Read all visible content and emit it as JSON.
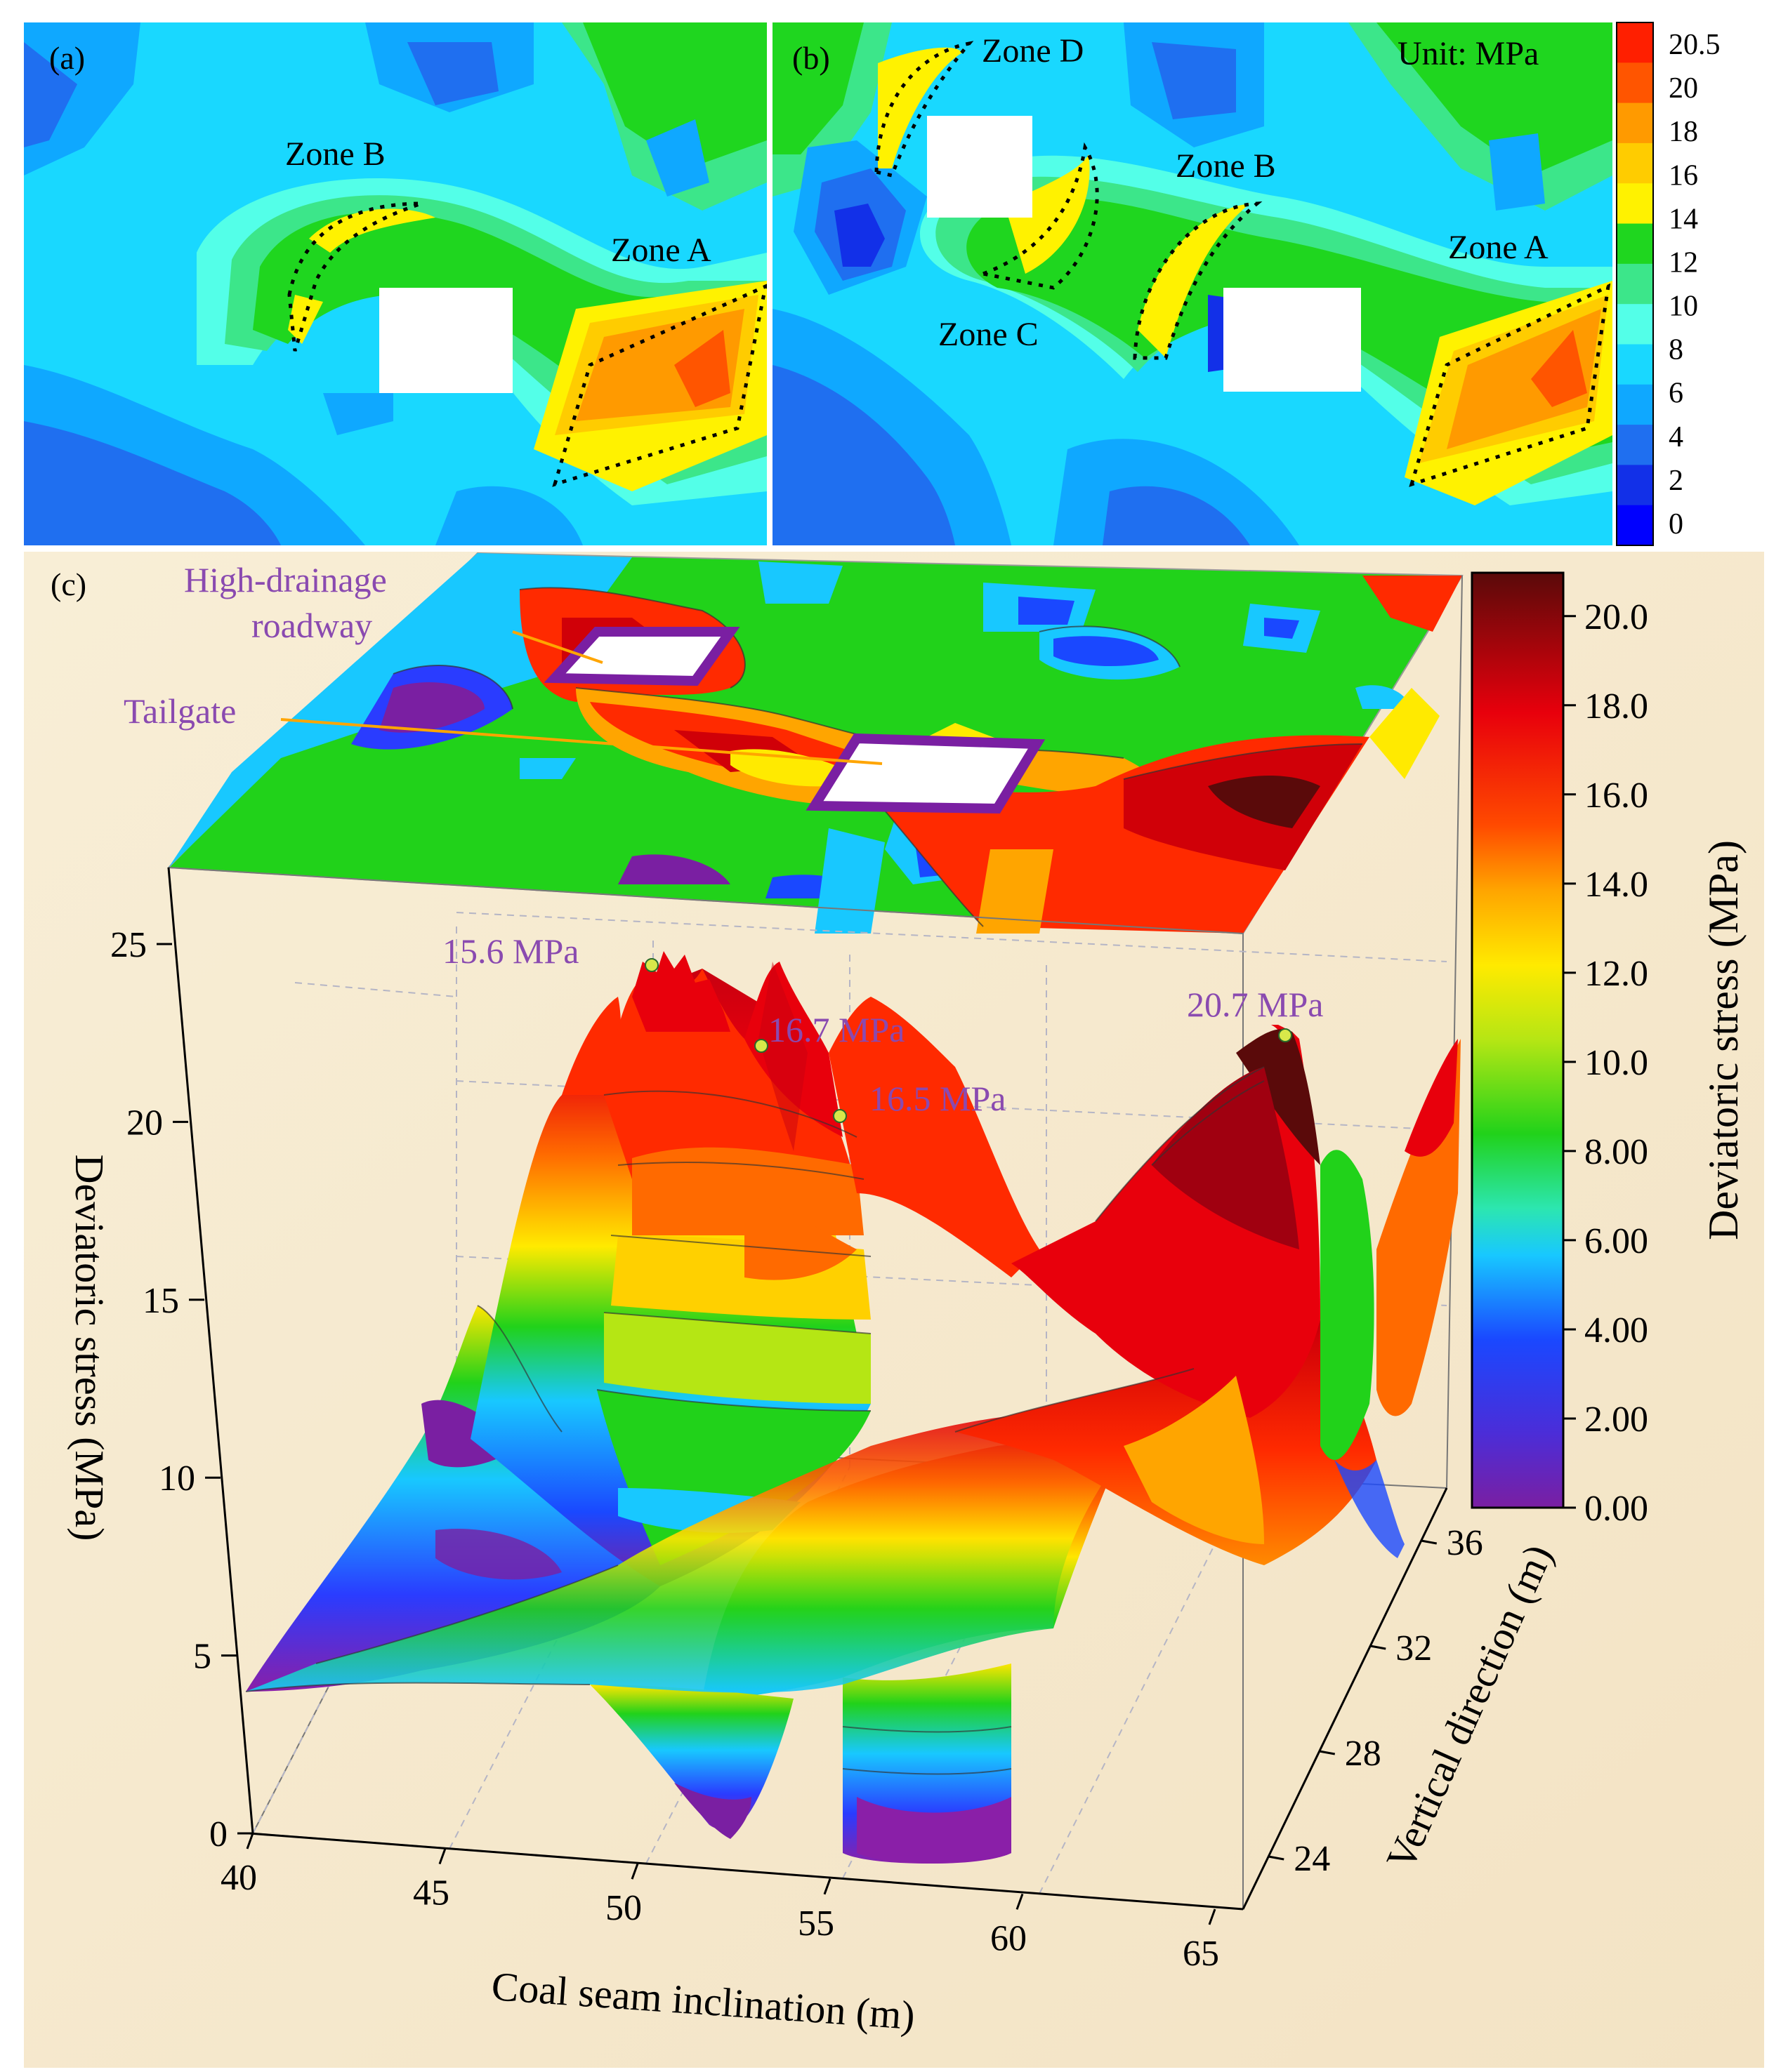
{
  "figure": {
    "panel_a": {
      "label": "(a)",
      "zones": [
        "Zone B",
        "Zone A"
      ]
    },
    "panel_b": {
      "label": "(b)",
      "zones": [
        "Zone D",
        "Zone B",
        "Zone C",
        "Zone A"
      ],
      "unit_label": "Unit: MPa"
    },
    "legend_ab": {
      "ticks": [
        "20.5",
        "20",
        "18",
        "16",
        "14",
        "12",
        "10",
        "8",
        "6",
        "4",
        "2",
        "0"
      ],
      "colors": [
        "#ff1f00",
        "#ff5500",
        "#ff9a00",
        "#ffcc00",
        "#fff200",
        "#1fd61f",
        "#3ce68a",
        "#53ffe8",
        "#19d8ff",
        "#0fa8ff",
        "#1f6ff0",
        "#1230e8",
        "#0000ff"
      ]
    },
    "panel_c": {
      "label": "(c)",
      "annotations": [
        "High-drainage",
        "roadway",
        "Tailgate"
      ],
      "peaks": [
        "15.6 MPa",
        "16.7 MPa",
        "16.5 MPa",
        "20.7 MPa"
      ],
      "colorbar_title": "Deviatoric stress (MPa)",
      "colorbar_ticks": [
        "20.0",
        "18.0",
        "16.0",
        "14.0",
        "12.0",
        "10.0",
        "8.00",
        "6.00",
        "4.00",
        "2.00",
        "0.00"
      ]
    }
  },
  "chart_data": [
    {
      "type": "heatmap",
      "panel": "(a)",
      "color_range": [
        0,
        20.5
      ],
      "zones": [
        {
          "name": "Zone B",
          "stress_band": [
            14,
            16
          ]
        },
        {
          "name": "Zone A",
          "stress_band": [
            16,
            20.5
          ]
        }
      ]
    },
    {
      "type": "heatmap",
      "panel": "(b)",
      "unit": "MPa",
      "color_range": [
        0,
        20.5
      ],
      "zones": [
        {
          "name": "Zone D",
          "stress_band": [
            14,
            16
          ]
        },
        {
          "name": "Zone B",
          "stress_band": [
            14,
            16
          ]
        },
        {
          "name": "Zone C",
          "stress_band": [
            14,
            16
          ]
        },
        {
          "name": "Zone A",
          "stress_band": [
            16,
            20.5
          ]
        }
      ]
    },
    {
      "type": "area",
      "panel": "(c)",
      "xlabel": "Coal seam inclination (m)",
      "ylabel": "Vertical direction (m)",
      "zlabel": "Deviatoric stress (MPa)",
      "xticks": [
        40,
        45,
        50,
        55,
        60,
        65
      ],
      "yticks": [
        24,
        28,
        32,
        36
      ],
      "zticks": [
        0,
        5,
        10,
        15,
        20,
        25
      ],
      "xlim": [
        40,
        65
      ],
      "zlim": [
        0,
        25
      ],
      "color_range": [
        0,
        20
      ],
      "peaks": [
        {
          "label": "15.6 MPa",
          "x": 50.5,
          "z": 24.3
        },
        {
          "label": "16.7 MPa",
          "x": 53.5,
          "z": 22.0
        },
        {
          "label": "16.5 MPa",
          "x": 55.5,
          "z": 20.2
        },
        {
          "label": "20.7 MPa",
          "x": 62.5,
          "z": 22.2
        }
      ]
    }
  ]
}
